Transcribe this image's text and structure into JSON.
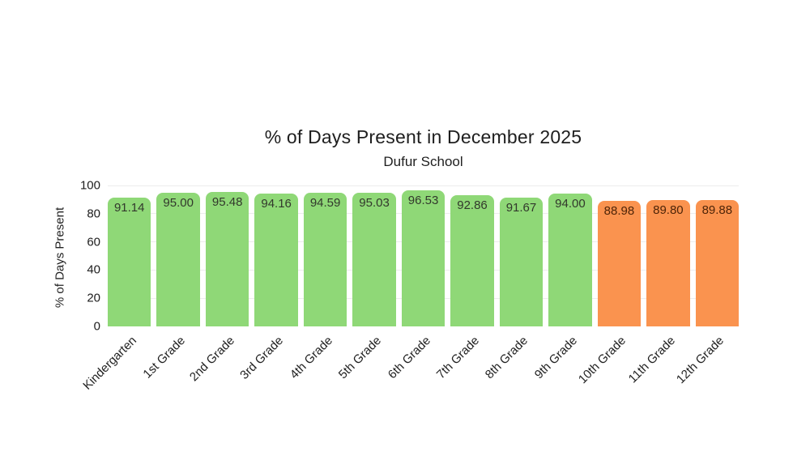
{
  "chart_data": {
    "type": "bar",
    "title": "% of Days Present in December 2025",
    "subtitle": "Dufur School",
    "ylabel": "% of Days Present",
    "xlabel": "",
    "ylim": [
      0,
      100
    ],
    "yticks": [
      0,
      20,
      40,
      60,
      80,
      100
    ],
    "grid": true,
    "legend": "none",
    "background_color": "#ffffff",
    "gridline_color": "#ececec",
    "categories": [
      "Kindergarten",
      "1st Grade",
      "2nd Grade",
      "3rd Grade",
      "4th Grade",
      "5th Grade",
      "6th Grade",
      "7th Grade",
      "8th Grade",
      "9th Grade",
      "10th Grade",
      "11th Grade",
      "12th Grade"
    ],
    "values": [
      91.14,
      95.0,
      95.48,
      94.16,
      94.59,
      95.03,
      96.53,
      92.86,
      91.67,
      94.0,
      88.98,
      89.8,
      89.88
    ],
    "value_labels": [
      "91.14",
      "95.00",
      "95.48",
      "94.16",
      "94.59",
      "95.03",
      "96.53",
      "92.86",
      "91.67",
      "94.00",
      "88.98",
      "89.80",
      "89.88"
    ],
    "bar_colors": [
      "#8fd877",
      "#8fd877",
      "#8fd877",
      "#8fd877",
      "#8fd877",
      "#8fd877",
      "#8fd877",
      "#8fd877",
      "#8fd877",
      "#8fd877",
      "#fa934f",
      "#fa934f",
      "#fa934f"
    ],
    "value_label_colors": [
      "#32382c",
      "#32382c",
      "#32382c",
      "#32382c",
      "#32382c",
      "#32382c",
      "#32382c",
      "#32382c",
      "#32382c",
      "#32382c",
      "#4d2408",
      "#4d2408",
      "#4d2408"
    ],
    "accent_colors": {
      "green": "#8fd877",
      "orange": "#fa934f"
    }
  }
}
